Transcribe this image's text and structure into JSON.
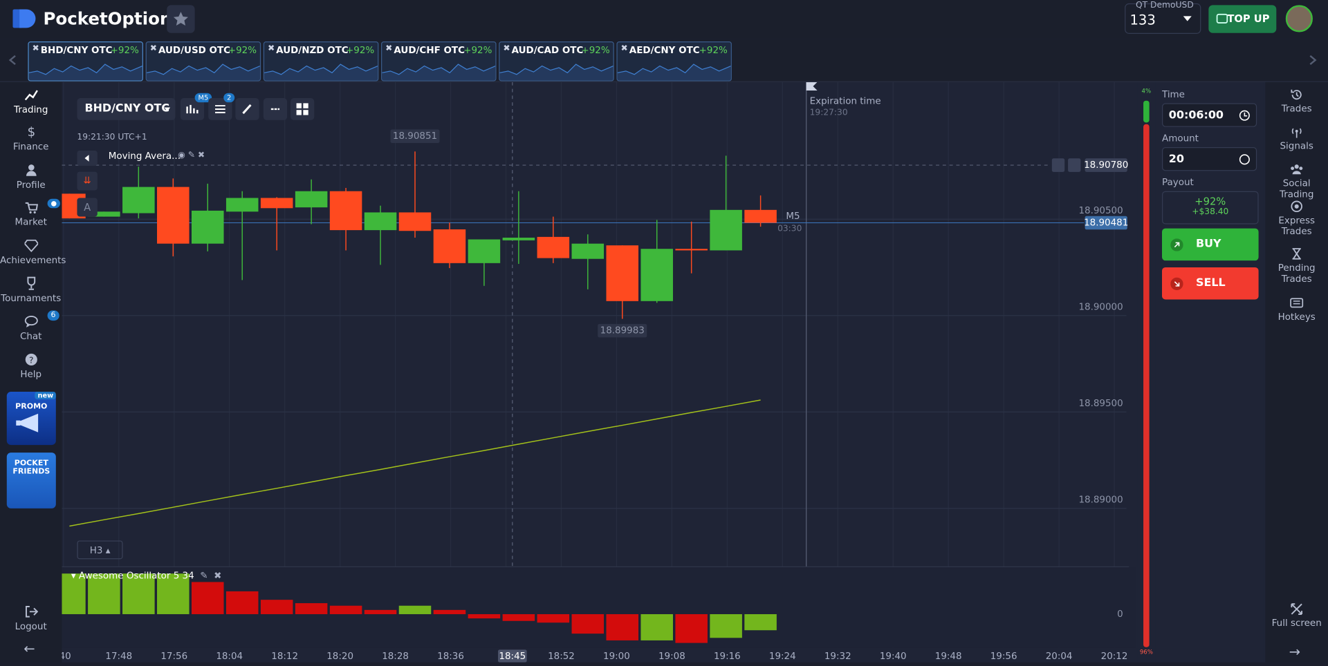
{
  "header": {
    "logo": "PocketOption",
    "account_type": "QT Demo",
    "currency": "USD",
    "balance": 133,
    "top_up": "TOP UP"
  },
  "tabs": [
    {
      "pair": "BHD/CNY OTC",
      "payout": "+92%"
    },
    {
      "pair": "AUD/USD OTC",
      "payout": "+92%"
    },
    {
      "pair": "AUD/NZD OTC",
      "payout": "+92%"
    },
    {
      "pair": "AUD/CHF OTC",
      "payout": "+92%"
    },
    {
      "pair": "AUD/CAD OTC",
      "payout": "+92%"
    },
    {
      "pair": "AED/CNY OTC",
      "payout": "+92%"
    }
  ],
  "sidebar": {
    "items": [
      "Trading",
      "Finance",
      "Profile",
      "Market",
      "Achievements",
      "Tournaments",
      "Chat",
      "Help"
    ],
    "chat_badge": 6,
    "promo": "PROMO",
    "promo_badge": "new",
    "friends": "POCKET FRIENDS",
    "logout": "Logout"
  },
  "toolbar": {
    "pair": "BHD/CNY OTC",
    "timeframe_badge": "M5",
    "indicators_badge": 2
  },
  "chart": {
    "type": "candlestick",
    "clock": "19:21:30 UTC+1",
    "indicator": "Moving Avera...",
    "tool_label": "A",
    "timeframe": "M5",
    "countdown": "03:30",
    "expiration_label": "Expiration time",
    "expiration_time": "19:27:30",
    "zoom": "H3",
    "up_color": "#3fb83b",
    "down_color": "#ff4a1f",
    "ma_color": "#a4c21a",
    "ylim": [
      18.88697,
      18.91211
    ],
    "yticks": [
      {
        "value": 18.905,
        "label": "18.90500"
      },
      {
        "value": 18.9,
        "label": "18.90000"
      },
      {
        "value": 18.895,
        "label": "18.89500"
      },
      {
        "value": 18.89,
        "label": "18.89000"
      }
    ],
    "xticks": [
      ":40",
      "17:48",
      "17:56",
      "18:04",
      "18:12",
      "18:20",
      "18:28",
      "18:36",
      null,
      "18:52",
      "19:00",
      "19:08",
      "19:16",
      "19:24",
      "19:32",
      "19:40",
      "19:48",
      "19:56",
      "20:04",
      "20:12"
    ],
    "crosshair_time": "18:45",
    "max_label": 18.90851,
    "min_label": 18.89983,
    "alert_price": {
      "value": 18.9078,
      "label": "18.90780"
    },
    "current_price": 18.90481,
    "candles": [
      {
        "open": 18.90632,
        "high": 18.90632,
        "low": 18.90504,
        "close": 18.90504
      },
      {
        "open": 18.90513,
        "high": 18.90539,
        "low": 18.90513,
        "close": 18.90539
      },
      {
        "open": 18.90531,
        "high": 18.90772,
        "low": 18.90504,
        "close": 18.90667
      },
      {
        "open": 18.90667,
        "high": 18.90711,
        "low": 18.90307,
        "close": 18.90373
      },
      {
        "open": 18.90373,
        "high": 18.90684,
        "low": 18.90333,
        "close": 18.90544
      },
      {
        "open": 18.90539,
        "high": 18.90645,
        "low": 18.90184,
        "close": 18.9061
      },
      {
        "open": 18.9061,
        "high": 18.90614,
        "low": 18.90338,
        "close": 18.90557
      },
      {
        "open": 18.90561,
        "high": 18.90706,
        "low": 18.90474,
        "close": 18.90645
      },
      {
        "open": 18.90645,
        "high": 18.90662,
        "low": 18.90338,
        "close": 18.90443
      },
      {
        "open": 18.90443,
        "high": 18.9057,
        "low": 18.90263,
        "close": 18.90535
      },
      {
        "open": 18.90535,
        "high": 18.90851,
        "low": 18.90404,
        "close": 18.90439
      },
      {
        "open": 18.90447,
        "high": 18.90482,
        "low": 18.90246,
        "close": 18.90272
      },
      {
        "open": 18.90272,
        "high": 18.90395,
        "low": 18.90154,
        "close": 18.90395
      },
      {
        "open": 18.9039,
        "high": 18.90645,
        "low": 18.90268,
        "close": 18.90404
      },
      {
        "open": 18.90408,
        "high": 18.90513,
        "low": 18.90272,
        "close": 18.90298
      },
      {
        "open": 18.90294,
        "high": 18.90421,
        "low": 18.90136,
        "close": 18.90373
      },
      {
        "open": 18.90364,
        "high": 18.90364,
        "low": 18.89983,
        "close": 18.90075
      },
      {
        "open": 18.90075,
        "high": 18.90496,
        "low": 18.90066,
        "close": 18.90346
      },
      {
        "open": 18.90346,
        "high": 18.90487,
        "low": 18.90219,
        "close": 18.90338
      },
      {
        "open": 18.90338,
        "high": 18.90829,
        "low": 18.90338,
        "close": 18.90548
      },
      {
        "open": 18.90548,
        "high": 18.90623,
        "low": 18.90461,
        "close": 18.90481
      }
    ],
    "ma": [
      18.88908,
      18.88941,
      18.88973,
      18.89006,
      18.89039,
      18.89072,
      18.89104,
      18.89137,
      18.8917,
      18.89202,
      18.89235,
      18.89268,
      18.893,
      18.89333,
      18.89366,
      18.89399,
      18.89431,
      18.89464,
      18.89497,
      18.89529,
      18.89562
    ],
    "oscillator": {
      "name": "Awesome Oscillator",
      "params": "5 34",
      "zero_label": "0",
      "ylim": [
        -36,
        50
      ],
      "up_color": "#73b61d",
      "down_color": "#d30c0c",
      "values": [
        48,
        48,
        48,
        48,
        38,
        27,
        17,
        13,
        10,
        5,
        10,
        5,
        -5,
        -8,
        -10,
        -23,
        -31,
        -31,
        -34,
        -28,
        -19
      ]
    }
  },
  "trade_panel": {
    "time_label": "Time",
    "time": "00:06:00",
    "amount_label": "Amount",
    "amount": 20,
    "payout_label": "Payout",
    "payout_percent": "+92%",
    "payout_amount": "+$38.40",
    "buy": "BUY",
    "sell": "SELL"
  },
  "sentiment": {
    "buy": 4,
    "sell": 96,
    "buy_label": "4%",
    "sell_label": "96%"
  },
  "right_nav": [
    "Trades",
    "Signals",
    "Social Trading",
    "Express Trades",
    "Pending Trades",
    "Hotkeys"
  ],
  "full_screen": "Full screen"
}
